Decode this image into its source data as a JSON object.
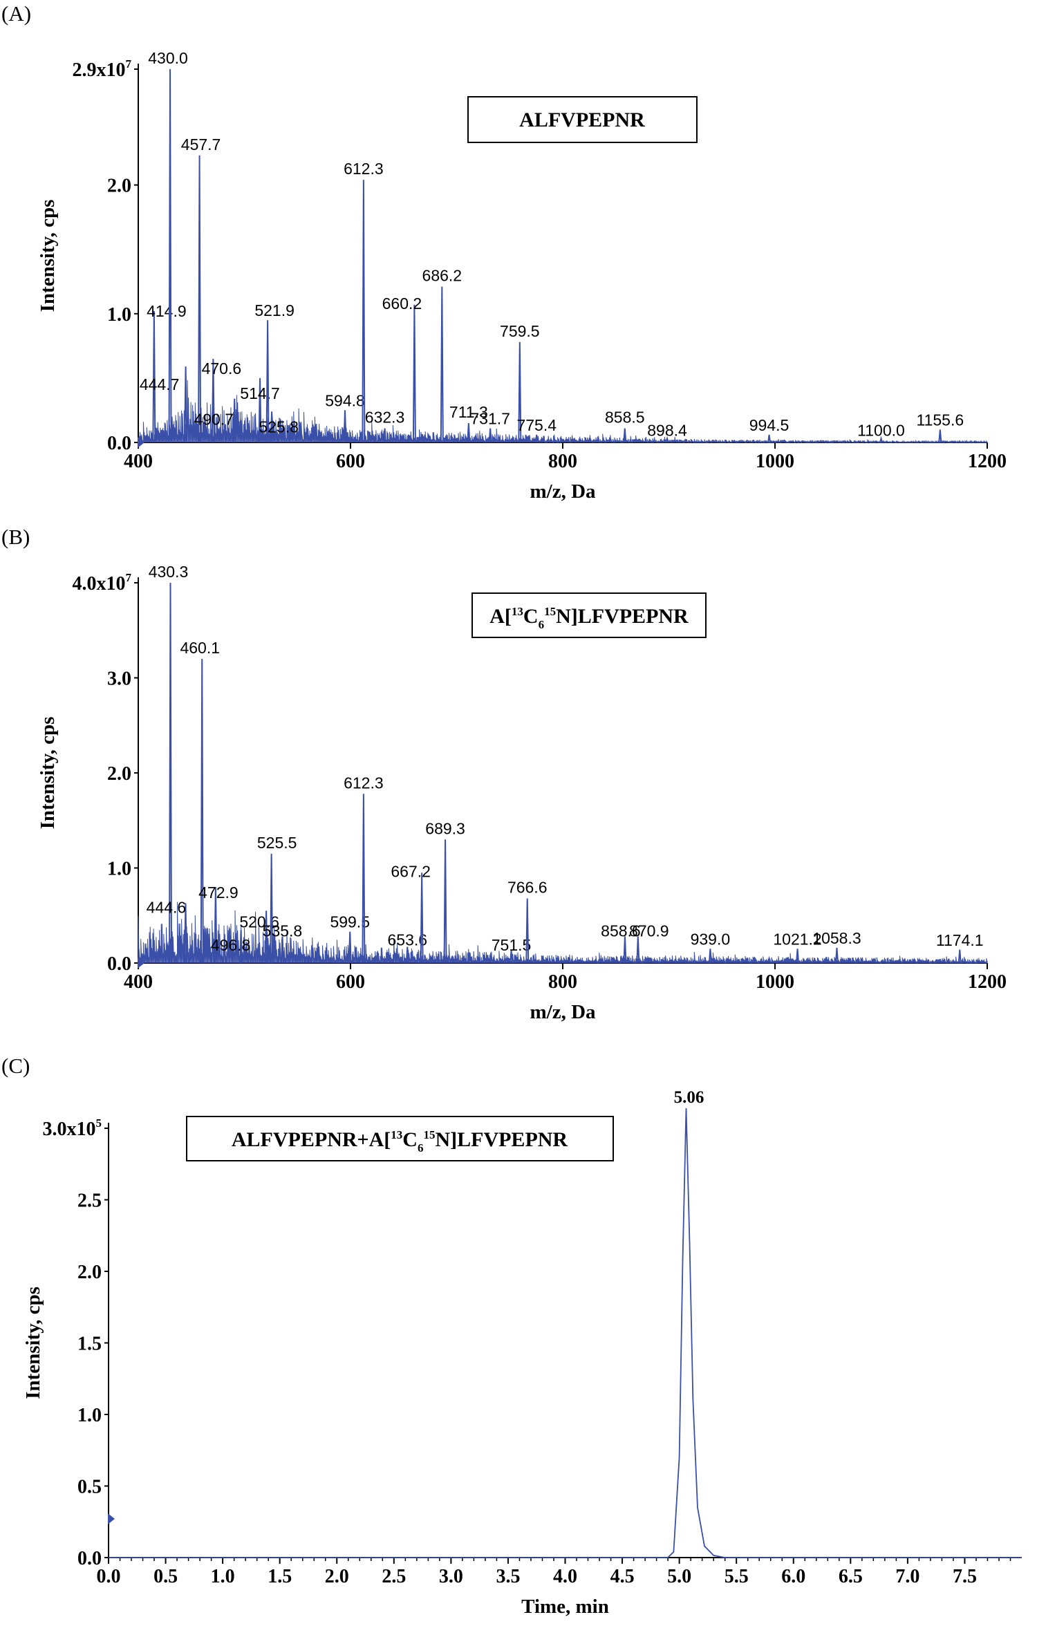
{
  "chart_data": [
    {
      "type": "line",
      "panel": "(A)",
      "series_name": "ALFVPEPNR",
      "xlabel": "m/z, Da",
      "ylabel": "Intensity, cps",
      "xlim": [
        400,
        1200
      ],
      "ylim": [
        0,
        29000000
      ],
      "x_ticks": [
        400,
        600,
        800,
        1000,
        1200
      ],
      "y_ticks": [
        {
          "value": 0,
          "label": "0.0"
        },
        {
          "value": 10000000,
          "label": "1.0"
        },
        {
          "value": 20000000,
          "label": "2.0"
        },
        {
          "value": 29000000,
          "label": "2.9x10",
          "exp": "7"
        }
      ],
      "baseline_noise": [
        [
          400,
          800000
        ],
        [
          450,
          3200000
        ],
        [
          500,
          2600000
        ],
        [
          550,
          1700000
        ],
        [
          600,
          1100000
        ],
        [
          700,
          800000
        ],
        [
          800,
          500000
        ],
        [
          900,
          300000
        ],
        [
          1000,
          200000
        ],
        [
          1200,
          120000
        ]
      ],
      "peaks": [
        {
          "mz": 414.9,
          "intensity": 10200000,
          "label": "414.9"
        },
        {
          "mz": 430.0,
          "intensity": 29000000,
          "label": "430.0"
        },
        {
          "mz": 444.7,
          "intensity": 5900000,
          "label": "444.7"
        },
        {
          "mz": 457.7,
          "intensity": 22300000,
          "label": "457.7"
        },
        {
          "mz": 470.6,
          "intensity": 6500000,
          "label": "470.6"
        },
        {
          "mz": 490.7,
          "intensity": 3400000,
          "label": "490.7"
        },
        {
          "mz": 514.7,
          "intensity": 5000000,
          "label": "514.7"
        },
        {
          "mz": 521.9,
          "intensity": 9500000,
          "label": "521.9"
        },
        {
          "mz": 525.8,
          "intensity": 2400000,
          "label": "525.8"
        },
        {
          "mz": 594.8,
          "intensity": 2500000,
          "label": "594.8"
        },
        {
          "mz": 612.3,
          "intensity": 20400000,
          "label": "612.3"
        },
        {
          "mz": 632.3,
          "intensity": 1100000,
          "label": "632.3"
        },
        {
          "mz": 660.2,
          "intensity": 10700000,
          "label": "660.2"
        },
        {
          "mz": 686.2,
          "intensity": 12100000,
          "label": "686.2"
        },
        {
          "mz": 711.3,
          "intensity": 1500000,
          "label": "711.3"
        },
        {
          "mz": 731.7,
          "intensity": 1100000,
          "label": "731.7"
        },
        {
          "mz": 759.5,
          "intensity": 7800000,
          "label": "759.5"
        },
        {
          "mz": 775.4,
          "intensity": 600000,
          "label": "775.4"
        },
        {
          "mz": 858.5,
          "intensity": 1100000,
          "label": "858.5"
        },
        {
          "mz": 898.4,
          "intensity": 300000,
          "label": "898.4"
        },
        {
          "mz": 994.5,
          "intensity": 600000,
          "label": "994.5"
        },
        {
          "mz": 1100.0,
          "intensity": 300000,
          "label": "1100.0"
        },
        {
          "mz": 1155.6,
          "intensity": 1000000,
          "label": "1155.6"
        }
      ]
    },
    {
      "type": "line",
      "panel": "(B)",
      "series_name": "A[13C6 15N]LFVPEPNR",
      "xlabel": "m/z, Da",
      "ylabel": "Intensity, cps",
      "xlim": [
        400,
        1200
      ],
      "ylim": [
        0,
        40000000
      ],
      "x_ticks": [
        400,
        600,
        800,
        1000,
        1200
      ],
      "y_ticks": [
        {
          "value": 0,
          "label": "0.0"
        },
        {
          "value": 10000000,
          "label": "1.0"
        },
        {
          "value": 20000000,
          "label": "2.0"
        },
        {
          "value": 30000000,
          "label": "3.0"
        },
        {
          "value": 40000000,
          "label": "4.0x10",
          "exp": "7"
        }
      ],
      "baseline_noise": [
        [
          400,
          3500000
        ],
        [
          450,
          5200000
        ],
        [
          500,
          3800000
        ],
        [
          550,
          2600000
        ],
        [
          600,
          1900000
        ],
        [
          700,
          1300000
        ],
        [
          800,
          900000
        ],
        [
          900,
          800000
        ],
        [
          1000,
          700000
        ],
        [
          1200,
          500000
        ]
      ],
      "peaks": [
        {
          "mz": 430.3,
          "intensity": 40000000,
          "label": "430.3"
        },
        {
          "mz": 444.6,
          "intensity": 6300000,
          "label": "444.6"
        },
        {
          "mz": 460.1,
          "intensity": 32000000,
          "label": "460.1"
        },
        {
          "mz": 472.9,
          "intensity": 8000000,
          "label": "472.9"
        },
        {
          "mz": 496.8,
          "intensity": 3500000,
          "label": "496.8"
        },
        {
          "mz": 520.6,
          "intensity": 5500000,
          "label": "520.6"
        },
        {
          "mz": 525.5,
          "intensity": 11500000,
          "label": "525.5"
        },
        {
          "mz": 535.8,
          "intensity": 2800000,
          "label": "535.8"
        },
        {
          "mz": 599.5,
          "intensity": 3300000,
          "label": "599.5"
        },
        {
          "mz": 612.3,
          "intensity": 17800000,
          "label": "612.3"
        },
        {
          "mz": 653.6,
          "intensity": 1700000,
          "label": "653.6"
        },
        {
          "mz": 667.2,
          "intensity": 9500000,
          "label": "667.2"
        },
        {
          "mz": 689.3,
          "intensity": 13000000,
          "label": "689.3"
        },
        {
          "mz": 751.5,
          "intensity": 1300000,
          "label": "751.5"
        },
        {
          "mz": 766.6,
          "intensity": 6800000,
          "label": "766.6"
        },
        {
          "mz": 858.6,
          "intensity": 2800000,
          "label": "858.6"
        },
        {
          "mz": 870.9,
          "intensity": 2800000,
          "label": "870.9"
        },
        {
          "mz": 939.0,
          "intensity": 1500000,
          "label": "939.0"
        },
        {
          "mz": 1021.2,
          "intensity": 1500000,
          "label": "1021.2"
        },
        {
          "mz": 1058.3,
          "intensity": 1600000,
          "label": "1058.3"
        },
        {
          "mz": 1174.1,
          "intensity": 1400000,
          "label": "1174.1"
        }
      ]
    },
    {
      "type": "line",
      "panel": "(C)",
      "series_name": "ALFVPEPNR+A[13C6 15N]LFVPEPNR",
      "xlabel": "Time, min",
      "ylabel": "Intensity, cps",
      "xlim": [
        0,
        8
      ],
      "ylim": [
        0,
        300000
      ],
      "x_ticks": [
        0.0,
        0.5,
        1.0,
        1.5,
        2.0,
        2.5,
        3.0,
        3.5,
        4.0,
        4.5,
        5.0,
        5.5,
        6.0,
        6.5,
        7.0,
        7.5
      ],
      "y_ticks": [
        {
          "value": 0,
          "label": "0.0"
        },
        {
          "value": 50000,
          "label": "0.5"
        },
        {
          "value": 100000,
          "label": "1.0"
        },
        {
          "value": 150000,
          "label": "1.5"
        },
        {
          "value": 200000,
          "label": "2.0"
        },
        {
          "value": 250000,
          "label": "2.5"
        },
        {
          "value": 300000,
          "label": "3.0x10",
          "exp": "5"
        }
      ],
      "peak_apex": {
        "x": 5.06,
        "y": 314000,
        "label": "5.06"
      },
      "trace": [
        [
          0,
          0
        ],
        [
          4.9,
          0
        ],
        [
          4.95,
          4000
        ],
        [
          5.0,
          70000
        ],
        [
          5.03,
          210000
        ],
        [
          5.06,
          314000
        ],
        [
          5.09,
          220000
        ],
        [
          5.12,
          110000
        ],
        [
          5.16,
          35000
        ],
        [
          5.22,
          8000
        ],
        [
          5.3,
          1500
        ],
        [
          5.4,
          0
        ],
        [
          8.0,
          0
        ]
      ]
    }
  ],
  "panels": {
    "a": {
      "tag": "(A)",
      "box": {
        "text": "ALFVPEPNR"
      }
    },
    "b": {
      "tag": "(B)",
      "box": {
        "pre": "A[",
        "sup1": "13",
        "mid1": "C",
        "sub": "6",
        "sup2": "15",
        "post": "N]LFVPEPNR"
      }
    },
    "c": {
      "tag": "(C)",
      "box": {
        "pre": "ALFVPEPNR+A[",
        "sup1": "13",
        "mid1": "C",
        "sub": "6",
        "sup2": "15",
        "post": "N]LFVPEPNR"
      }
    }
  },
  "colors": {
    "trace": "#3a4fa8",
    "axis": "#000000",
    "marker": "#3a4fa8"
  }
}
